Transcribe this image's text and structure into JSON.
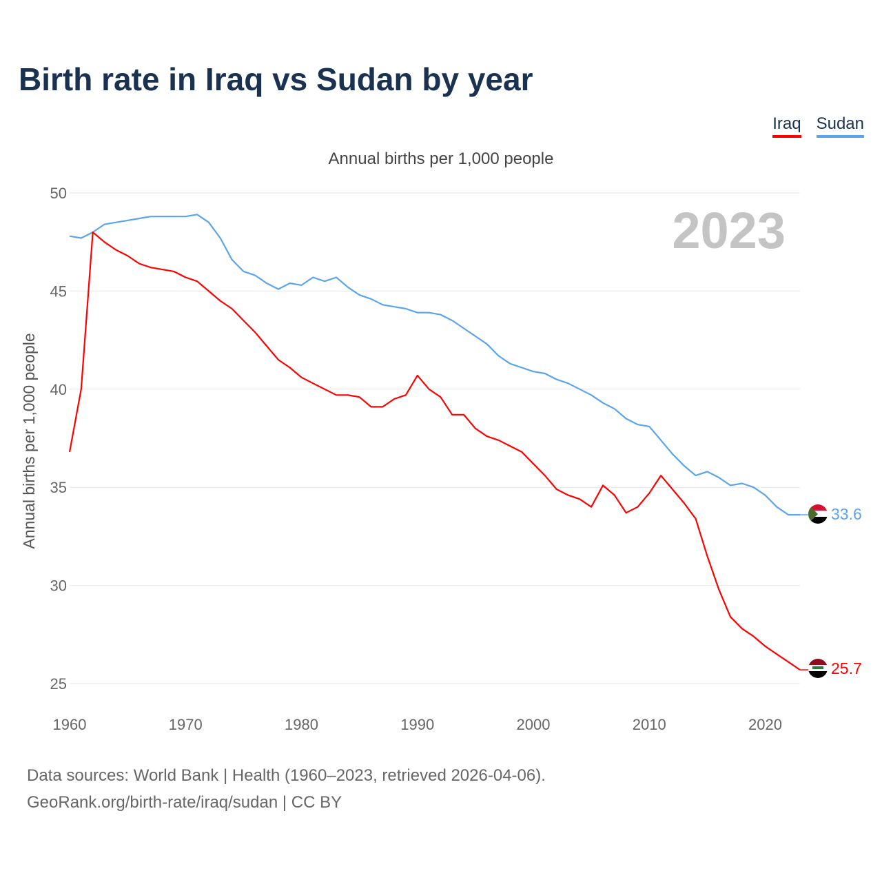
{
  "title": "Birth rate in Iraq vs Sudan by year",
  "legend": [
    {
      "name": "Iraq",
      "color": "#ff0000"
    },
    {
      "name": "Sudan",
      "color": "#5ba4ec"
    }
  ],
  "subtitle": "Annual births per 1,000 people",
  "year_label": "2023",
  "source_line1": "Data sources: World Bank | Health (1960–2023, retrieved 2026-04-06).",
  "source_line2": "GeoRank.org/birth-rate/iraq/sudan | CC BY",
  "chart_data": {
    "type": "line",
    "title": "Birth rate in Iraq vs Sudan by year",
    "xlabel": "",
    "ylabel": "Annual births per 1,000 people",
    "xlim": [
      1960,
      2023
    ],
    "ylim": [
      25,
      50
    ],
    "xticks": [
      1960,
      1970,
      1980,
      1990,
      2000,
      2010,
      2020
    ],
    "yticks": [
      25,
      30,
      35,
      40,
      45,
      50
    ],
    "grid": true,
    "legend_position": "top-right",
    "x_start": 1960,
    "series": [
      {
        "name": "Iraq",
        "color": "#ff0000",
        "end_label": "25.7",
        "values": [
          36.8,
          40.0,
          48.0,
          47.5,
          47.1,
          46.8,
          46.4,
          46.2,
          46.1,
          46.0,
          45.7,
          45.5,
          45.0,
          44.5,
          44.1,
          43.5,
          42.9,
          42.2,
          41.5,
          41.1,
          40.6,
          40.3,
          40.0,
          39.7,
          39.7,
          39.6,
          39.1,
          39.1,
          39.5,
          39.7,
          40.7,
          40.0,
          39.6,
          38.7,
          38.7,
          38.0,
          37.6,
          37.4,
          37.1,
          36.8,
          36.2,
          35.6,
          34.9,
          34.6,
          34.4,
          34.0,
          35.1,
          34.6,
          33.7,
          34.0,
          34.7,
          35.6,
          34.9,
          34.2,
          33.4,
          31.5,
          29.8,
          28.4,
          27.8,
          27.4,
          26.9,
          26.5,
          26.1,
          25.7
        ]
      },
      {
        "name": "Sudan",
        "color": "#5ba4ec",
        "end_label": "33.6",
        "values": [
          47.8,
          47.7,
          48.0,
          48.4,
          48.5,
          48.6,
          48.7,
          48.8,
          48.8,
          48.8,
          48.8,
          48.9,
          48.5,
          47.7,
          46.6,
          46.0,
          45.8,
          45.4,
          45.1,
          45.4,
          45.3,
          45.7,
          45.5,
          45.7,
          45.2,
          44.8,
          44.6,
          44.3,
          44.2,
          44.1,
          43.9,
          43.9,
          43.8,
          43.5,
          43.1,
          42.7,
          42.3,
          41.7,
          41.3,
          41.1,
          40.9,
          40.8,
          40.5,
          40.3,
          40.0,
          39.7,
          39.3,
          39.0,
          38.5,
          38.2,
          38.1,
          37.4,
          36.7,
          36.1,
          35.6,
          35.8,
          35.5,
          35.1,
          35.2,
          35.0,
          34.6,
          34.0,
          33.6,
          33.6
        ]
      }
    ]
  }
}
